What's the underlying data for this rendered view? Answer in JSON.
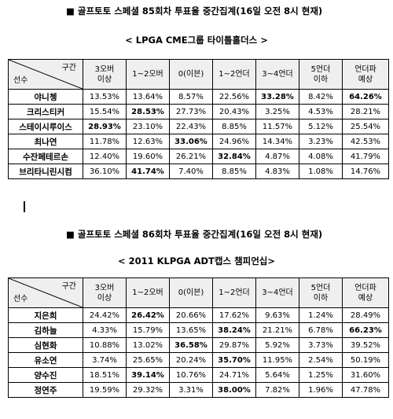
{
  "section1": {
    "heading": "■ 골프토토 스페셜 85회차 투표율 중간집계(16일 오전 8시 현재)",
    "subtitle": "< LPGA CME그룹 타이틀홀더스 >",
    "corner_top": "구간",
    "corner_bottom": "선수",
    "columns": [
      "3오버\n이상",
      "1~2오버",
      "0(이븐)",
      "1~2언더",
      "3~4언더",
      "5언더\n이하",
      "언더파\n예상"
    ],
    "rows": [
      {
        "name": "야니쳉",
        "values": [
          "13.53%",
          "13.64%",
          "8.57%",
          "22.56%",
          "33.28%",
          "8.42%",
          "64.26%"
        ],
        "bold": [
          4,
          6
        ]
      },
      {
        "name": "크리스티커",
        "values": [
          "15.54%",
          "28.53%",
          "27.73%",
          "20.43%",
          "3.25%",
          "4.53%",
          "28.21%"
        ],
        "bold": [
          1
        ]
      },
      {
        "name": "스테이시루이스",
        "values": [
          "28.93%",
          "23.10%",
          "22.43%",
          "8.85%",
          "11.57%",
          "5.12%",
          "25.54%"
        ],
        "bold": [
          0
        ]
      },
      {
        "name": "최나연",
        "values": [
          "11.78%",
          "12.63%",
          "33.06%",
          "24.96%",
          "14.34%",
          "3.23%",
          "42.53%"
        ],
        "bold": [
          2
        ]
      },
      {
        "name": "수잔페테르손",
        "values": [
          "12.40%",
          "19.60%",
          "26.21%",
          "32.84%",
          "4.87%",
          "4.08%",
          "41.79%"
        ],
        "bold": [
          3
        ]
      },
      {
        "name": "브리타니린시컴",
        "values": [
          "36.10%",
          "41.74%",
          "7.40%",
          "8.85%",
          "4.83%",
          "1.08%",
          "14.76%"
        ],
        "bold": [
          1
        ]
      }
    ]
  },
  "section2": {
    "heading": "■ 골프토토 스페셜 86회차 투표율 중간집계(16일 오전 8시 현재)",
    "subtitle": "< 2011 KLPGA ADT캡스 챔피언십>",
    "corner_top": "구간",
    "corner_bottom": "선수",
    "columns": [
      "3오버\n이상",
      "1~2오버",
      "0(이븐)",
      "1~2언더",
      "3~4언더",
      "5언더\n이하",
      "언더파\n예상"
    ],
    "rows": [
      {
        "name": "지은희",
        "values": [
          "24.42%",
          "26.42%",
          "20.66%",
          "17.62%",
          "9.63%",
          "1.24%",
          "28.49%"
        ],
        "bold": [
          1
        ]
      },
      {
        "name": "김하늘",
        "values": [
          "4.33%",
          "15.79%",
          "13.65%",
          "38.24%",
          "21.21%",
          "6.78%",
          "66.23%"
        ],
        "bold": [
          3,
          6
        ]
      },
      {
        "name": "심현화",
        "values": [
          "10.88%",
          "13.02%",
          "36.58%",
          "29.87%",
          "5.92%",
          "3.73%",
          "39.52%"
        ],
        "bold": [
          2
        ]
      },
      {
        "name": "유소연",
        "values": [
          "3.74%",
          "25.65%",
          "20.24%",
          "35.70%",
          "11.95%",
          "2.54%",
          "50.19%"
        ],
        "bold": [
          3
        ]
      },
      {
        "name": "양수진",
        "values": [
          "18.51%",
          "39.14%",
          "10.76%",
          "24.71%",
          "5.64%",
          "1.25%",
          "31.60%"
        ],
        "bold": [
          1
        ]
      },
      {
        "name": "정연주",
        "values": [
          "19.59%",
          "29.32%",
          "3.31%",
          "38.00%",
          "7.82%",
          "1.96%",
          "47.78%"
        ],
        "bold": [
          3
        ]
      }
    ]
  }
}
